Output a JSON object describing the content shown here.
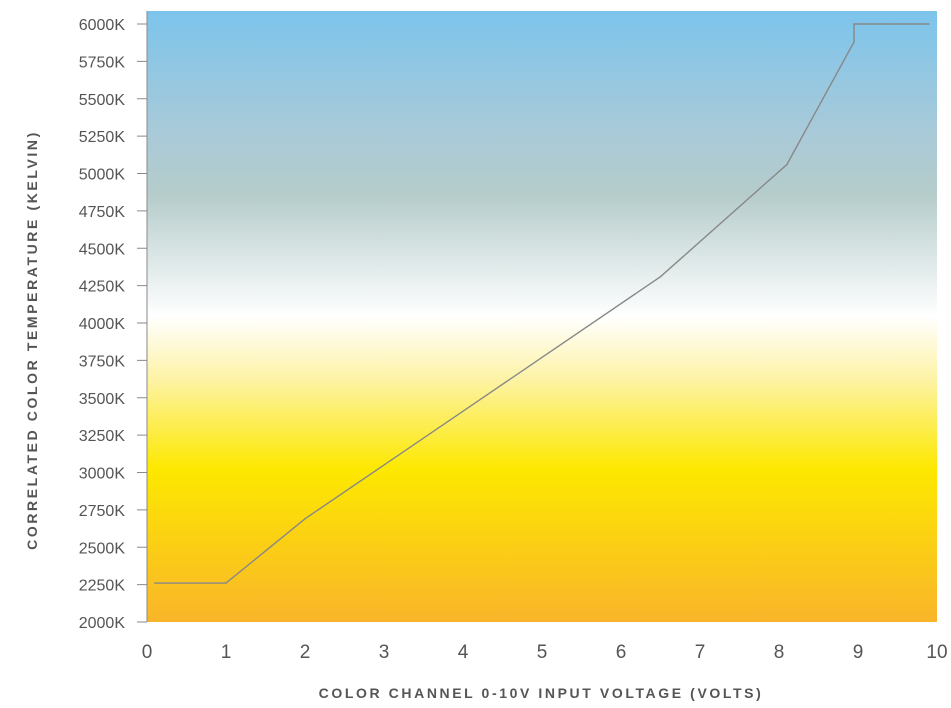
{
  "chart_data": {
    "type": "line",
    "title": "",
    "xlabel": "COLOR CHANNEL 0-10V INPUT VOLTAGE (VOLTS)",
    "ylabel": "CORRELATED COLOR TEMPERATURE (KELVIN)",
    "xlim": [
      0,
      10
    ],
    "ylim": [
      2000,
      6000
    ],
    "x_ticks": [
      "0",
      "1",
      "2",
      "3",
      "4",
      "5",
      "6",
      "7",
      "8",
      "9",
      "10"
    ],
    "y_ticks": [
      "2000K",
      "2250K",
      "2500K",
      "2750K",
      "3000K",
      "3250K",
      "3500K",
      "3750K",
      "4000K",
      "4250K",
      "4500K",
      "4750K",
      "5000K",
      "5250K",
      "5500K",
      "5750K",
      "6000K"
    ],
    "grid": false,
    "legend": "none",
    "background_gradient": [
      "#7cc4ec",
      "#a9cad8",
      "#b5cccb",
      "#ffffff",
      "#fdf3a8",
      "#fde800",
      "#f9b52a"
    ],
    "line_color": "#888888",
    "series": [
      {
        "x": [
          0.1,
          1.0,
          2.0,
          6.5,
          8.1,
          8.95,
          8.95,
          9.9
        ],
        "y": [
          2260,
          2260,
          2690,
          4310,
          5060,
          5880,
          6000,
          6000
        ]
      }
    ]
  }
}
